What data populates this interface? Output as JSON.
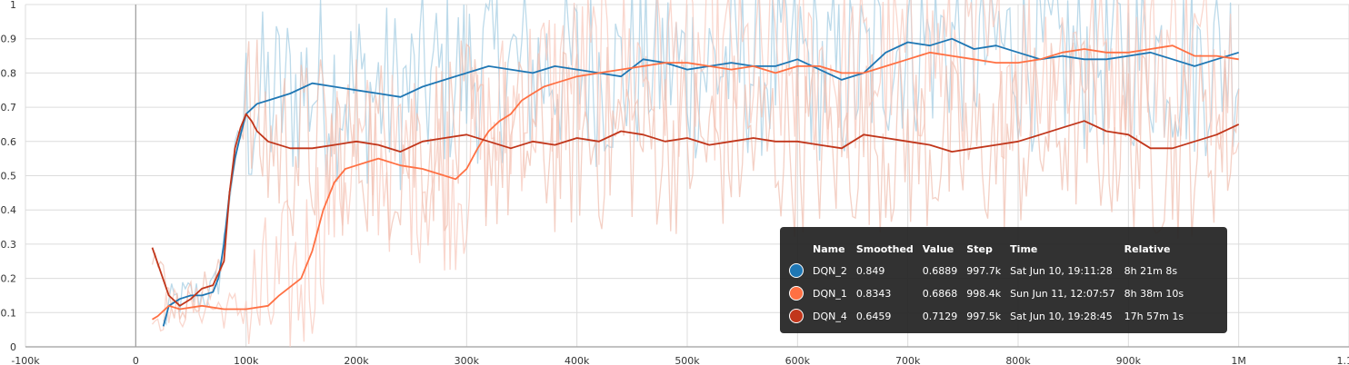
{
  "chart_data": {
    "type": "line",
    "title": "",
    "xlabel": "",
    "ylabel": "",
    "xlim": [
      -100000,
      1100000
    ],
    "ylim": [
      0,
      1
    ],
    "x_ticks": [
      {
        "value": -100000,
        "label": "-100k"
      },
      {
        "value": 0,
        "label": "0"
      },
      {
        "value": 100000,
        "label": "100k"
      },
      {
        "value": 200000,
        "label": "200k"
      },
      {
        "value": 300000,
        "label": "300k"
      },
      {
        "value": 400000,
        "label": "400k"
      },
      {
        "value": 500000,
        "label": "500k"
      },
      {
        "value": 600000,
        "label": "600k"
      },
      {
        "value": 700000,
        "label": "700k"
      },
      {
        "value": 800000,
        "label": "800k"
      },
      {
        "value": 900000,
        "label": "900k"
      },
      {
        "value": 1000000,
        "label": "1M"
      },
      {
        "value": 1100000,
        "label": "1.1M"
      }
    ],
    "y_ticks": [
      {
        "value": 0,
        "label": "0"
      },
      {
        "value": 0.1,
        "label": "0.1"
      },
      {
        "value": 0.2,
        "label": "0.2"
      },
      {
        "value": 0.3,
        "label": "0.3"
      },
      {
        "value": 0.4,
        "label": "0.4"
      },
      {
        "value": 0.5,
        "label": "0.5"
      },
      {
        "value": 0.6,
        "label": "0.6"
      },
      {
        "value": 0.7,
        "label": "0.7"
      },
      {
        "value": 0.8,
        "label": "0.8"
      },
      {
        "value": 0.9,
        "label": "0.9"
      },
      {
        "value": 1,
        "label": "1"
      }
    ],
    "grid": true,
    "series": [
      {
        "name": "DQN_2",
        "color": "#1f77b4",
        "raw_color": "#a6cee3",
        "x": [
          25000,
          30000,
          40000,
          50000,
          60000,
          70000,
          75000,
          80000,
          85000,
          90000,
          95000,
          100000,
          110000,
          120000,
          140000,
          160000,
          180000,
          200000,
          220000,
          240000,
          260000,
          280000,
          300000,
          320000,
          340000,
          360000,
          380000,
          400000,
          420000,
          440000,
          460000,
          480000,
          500000,
          520000,
          540000,
          560000,
          580000,
          600000,
          620000,
          640000,
          660000,
          680000,
          700000,
          720000,
          740000,
          760000,
          780000,
          800000,
          820000,
          840000,
          860000,
          880000,
          900000,
          920000,
          940000,
          960000,
          980000,
          1000000
        ],
        "y": [
          0.06,
          0.12,
          0.14,
          0.15,
          0.15,
          0.16,
          0.2,
          0.3,
          0.45,
          0.55,
          0.62,
          0.68,
          0.71,
          0.72,
          0.74,
          0.77,
          0.76,
          0.75,
          0.74,
          0.73,
          0.76,
          0.78,
          0.8,
          0.82,
          0.81,
          0.8,
          0.82,
          0.81,
          0.8,
          0.79,
          0.84,
          0.83,
          0.81,
          0.82,
          0.83,
          0.82,
          0.82,
          0.84,
          0.81,
          0.78,
          0.8,
          0.86,
          0.89,
          0.88,
          0.9,
          0.87,
          0.88,
          0.86,
          0.84,
          0.85,
          0.84,
          0.84,
          0.85,
          0.86,
          0.84,
          0.82,
          0.84,
          0.86
        ]
      },
      {
        "name": "DQN_1",
        "color": "#ff7043",
        "raw_color": "#f8c9bd",
        "x": [
          15000,
          20000,
          30000,
          40000,
          60000,
          80000,
          100000,
          120000,
          130000,
          150000,
          160000,
          170000,
          180000,
          190000,
          200000,
          210000,
          220000,
          240000,
          260000,
          280000,
          290000,
          300000,
          310000,
          320000,
          330000,
          340000,
          350000,
          360000,
          370000,
          380000,
          400000,
          420000,
          440000,
          460000,
          480000,
          500000,
          520000,
          540000,
          560000,
          580000,
          600000,
          620000,
          640000,
          660000,
          680000,
          700000,
          720000,
          740000,
          760000,
          780000,
          800000,
          820000,
          840000,
          860000,
          880000,
          900000,
          920000,
          940000,
          960000,
          980000,
          1000000
        ],
        "y": [
          0.08,
          0.09,
          0.12,
          0.11,
          0.12,
          0.11,
          0.11,
          0.12,
          0.15,
          0.2,
          0.28,
          0.4,
          0.48,
          0.52,
          0.53,
          0.54,
          0.55,
          0.53,
          0.52,
          0.5,
          0.49,
          0.52,
          0.58,
          0.63,
          0.66,
          0.68,
          0.72,
          0.74,
          0.76,
          0.77,
          0.79,
          0.8,
          0.81,
          0.82,
          0.83,
          0.83,
          0.82,
          0.81,
          0.82,
          0.8,
          0.82,
          0.82,
          0.8,
          0.8,
          0.82,
          0.84,
          0.86,
          0.85,
          0.84,
          0.83,
          0.83,
          0.84,
          0.86,
          0.87,
          0.86,
          0.86,
          0.87,
          0.88,
          0.85,
          0.85,
          0.84
        ]
      },
      {
        "name": "DQN_4",
        "color": "#c1361b",
        "raw_color": "#f0c0b2",
        "x": [
          15000,
          30000,
          40000,
          50000,
          60000,
          70000,
          80000,
          85000,
          90000,
          95000,
          100000,
          105000,
          110000,
          120000,
          140000,
          160000,
          180000,
          200000,
          220000,
          240000,
          260000,
          280000,
          300000,
          320000,
          340000,
          360000,
          380000,
          400000,
          420000,
          440000,
          460000,
          480000,
          500000,
          520000,
          540000,
          560000,
          580000,
          600000,
          620000,
          640000,
          660000,
          680000,
          700000,
          720000,
          740000,
          760000,
          780000,
          800000,
          820000,
          840000,
          860000,
          880000,
          900000,
          920000,
          940000,
          960000,
          980000,
          1000000
        ],
        "y": [
          0.29,
          0.15,
          0.12,
          0.14,
          0.17,
          0.18,
          0.25,
          0.45,
          0.58,
          0.64,
          0.68,
          0.66,
          0.63,
          0.6,
          0.58,
          0.58,
          0.59,
          0.6,
          0.59,
          0.57,
          0.6,
          0.61,
          0.62,
          0.6,
          0.58,
          0.6,
          0.59,
          0.61,
          0.6,
          0.63,
          0.62,
          0.6,
          0.61,
          0.59,
          0.6,
          0.61,
          0.6,
          0.6,
          0.59,
          0.58,
          0.62,
          0.61,
          0.6,
          0.59,
          0.57,
          0.58,
          0.59,
          0.6,
          0.62,
          0.64,
          0.66,
          0.63,
          0.62,
          0.58,
          0.58,
          0.6,
          0.62,
          0.65
        ]
      }
    ]
  },
  "tooltip": {
    "headers": [
      "Name",
      "Smoothed",
      "Value",
      "Step",
      "Time",
      "Relative"
    ],
    "rows": [
      {
        "color": "#1f77b4",
        "name": "DQN_2",
        "smoothed": "0.849",
        "value": "0.6889",
        "step": "997.7k",
        "time": "Sat Jun 10, 19:11:28",
        "relative": "8h 21m 8s"
      },
      {
        "color": "#ff7043",
        "name": "DQN_1",
        "smoothed": "0.8343",
        "value": "0.6868",
        "step": "998.4k",
        "time": "Sun Jun 11, 12:07:57",
        "relative": "8h 38m 10s"
      },
      {
        "color": "#c1361b",
        "name": "DQN_4",
        "smoothed": "0.6459",
        "value": "0.7129",
        "step": "997.5k",
        "time": "Sat Jun 10, 19:28:45",
        "relative": "17h 57m 1s"
      }
    ]
  }
}
